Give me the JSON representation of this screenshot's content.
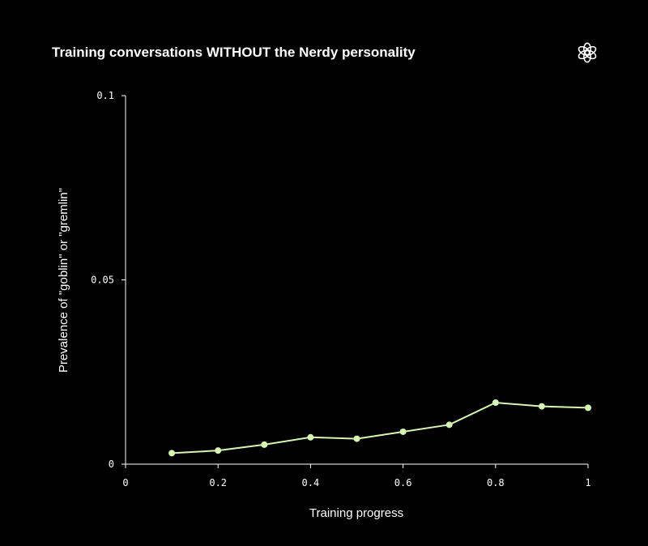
{
  "logo": {
    "icon": "openai-logo-icon"
  },
  "chart_data": {
    "type": "line",
    "title": "Training conversations WITHOUT the Nerdy personality",
    "xlabel": "Training progress",
    "ylabel": "Prevalence of \"goblin\" or \"gremlin\"",
    "xlim": [
      0,
      1
    ],
    "ylim": [
      0,
      0.1
    ],
    "x_ticks": [
      "0",
      "0.2",
      "0.4",
      "0.6",
      "0.8",
      "1"
    ],
    "x_tick_values": [
      0,
      0.2,
      0.4,
      0.6,
      0.8,
      1
    ],
    "y_ticks": [
      "0",
      "0.05",
      "0.1"
    ],
    "y_tick_values": [
      0,
      0.05,
      0.1
    ],
    "grid": false,
    "legend": "none",
    "series": [
      {
        "color": "#d6f5b0",
        "x": [
          0.1,
          0.2,
          0.3,
          0.4,
          0.5,
          0.6,
          0.7,
          0.8,
          0.9,
          1.0
        ],
        "y": [
          0.003,
          0.0037,
          0.0053,
          0.0073,
          0.0069,
          0.0088,
          0.0107,
          0.0167,
          0.0157,
          0.0153
        ]
      }
    ]
  }
}
